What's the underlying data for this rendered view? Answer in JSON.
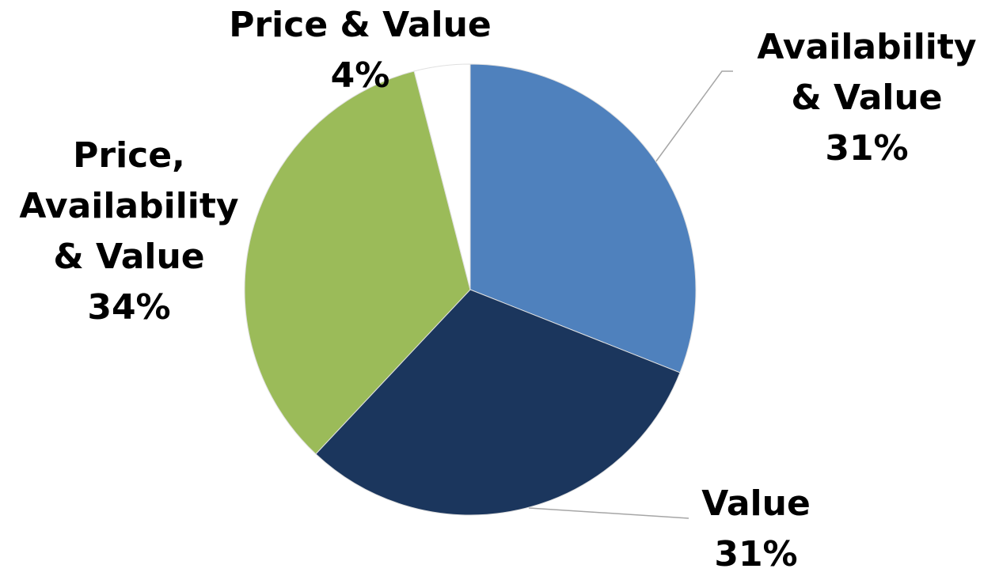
{
  "chart_data": {
    "type": "pie",
    "categories": [
      "Availability & Value",
      "Value",
      "Price, Availability & Value",
      "Price & Value"
    ],
    "values": [
      31,
      31,
      34,
      4
    ],
    "value_labels": [
      "31%",
      "31%",
      "34%",
      "4%"
    ],
    "colors": [
      "#4f81bd",
      "#1b365d",
      "#9bbb59",
      "#ffffff"
    ]
  }
}
